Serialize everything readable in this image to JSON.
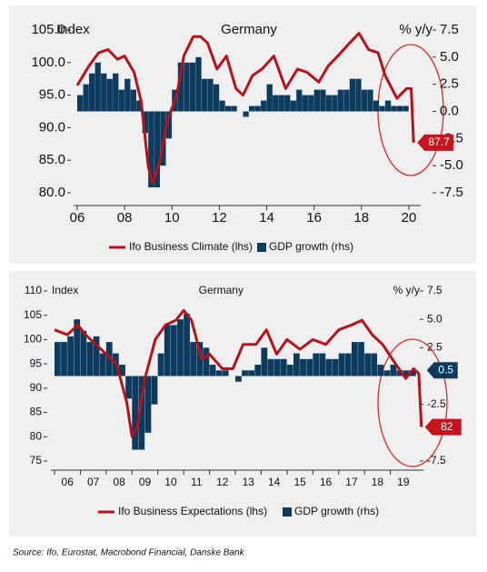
{
  "chart_data": [
    {
      "type": "combo",
      "title": "Germany",
      "y_label": "Index",
      "y2_label": "% y/y",
      "xlim": [
        2006,
        2020.5
      ],
      "xticks": [
        {
          "value": 2006,
          "label": "06"
        },
        {
          "value": 2008,
          "label": "08"
        },
        {
          "value": 2010,
          "label": "10"
        },
        {
          "value": 2012,
          "label": "12"
        },
        {
          "value": 2014,
          "label": "14"
        },
        {
          "value": 2016,
          "label": "16"
        },
        {
          "value": 2018,
          "label": "18"
        },
        {
          "value": 2020,
          "label": "20"
        }
      ],
      "ylim": [
        80,
        105
      ],
      "yticks": [
        {
          "value": 80,
          "label": "80.0"
        },
        {
          "value": 85,
          "label": "85.0"
        },
        {
          "value": 90,
          "label": "90.0"
        },
        {
          "value": 95,
          "label": "95.0"
        },
        {
          "value": 100,
          "label": "100.0"
        },
        {
          "value": 105,
          "label": "105.0"
        }
      ],
      "y2lim": [
        -7.5,
        7.5
      ],
      "y2ticks": [
        -7.5,
        {
          "value": -5,
          "label": "-5.0"
        },
        -2.5,
        {
          "value": 0,
          "label": "0.0"
        },
        2.5,
        {
          "value": 5,
          "label": "5.0"
        },
        7.5
      ],
      "series": [
        {
          "name": "Ifo Business Climate (lhs)",
          "kind": "line",
          "color": "#b5121b",
          "x": [
            2006.0,
            2006.5,
            2006.9,
            2007.3,
            2007.7,
            2008.0,
            2008.4,
            2008.7,
            2009.0,
            2009.2,
            2009.5,
            2009.8,
            2010.2,
            2010.5,
            2010.9,
            2011.2,
            2011.5,
            2011.9,
            2012.3,
            2012.7,
            2013.0,
            2013.4,
            2013.8,
            2014.3,
            2014.8,
            2015.3,
            2015.7,
            2016.2,
            2016.6,
            2017.0,
            2017.5,
            2017.9,
            2018.3,
            2018.7,
            2019.0,
            2019.5,
            2019.9,
            2020.1,
            2020.2
          ],
          "values": [
            96.5,
            99.5,
            101.5,
            102,
            100.5,
            101,
            98.5,
            94,
            84,
            81.5,
            85,
            91,
            95,
            101,
            104,
            104,
            103,
            99,
            101,
            96,
            95,
            98,
            99,
            101,
            96,
            99,
            98.5,
            97,
            99.5,
            101,
            103,
            104.5,
            102,
            101.5,
            98,
            94.5,
            96,
            96,
            87.7
          ]
        },
        {
          "name": "GDP growth (rhs)",
          "kind": "bar",
          "axis": "y2",
          "color": "#0d3b5e",
          "x": [
            2006.0,
            2006.25,
            2006.5,
            2006.75,
            2007.0,
            2007.25,
            2007.5,
            2007.75,
            2008.0,
            2008.25,
            2008.5,
            2008.75,
            2009.0,
            2009.25,
            2009.5,
            2009.75,
            2010.0,
            2010.25,
            2010.5,
            2010.75,
            2011.0,
            2011.25,
            2011.5,
            2011.75,
            2012.0,
            2012.25,
            2012.5,
            2012.75,
            2013.0,
            2013.25,
            2013.5,
            2013.75,
            2014.0,
            2014.25,
            2014.5,
            2014.75,
            2015.0,
            2015.25,
            2015.5,
            2015.75,
            2016.0,
            2016.25,
            2016.5,
            2016.75,
            2017.0,
            2017.25,
            2017.5,
            2017.75,
            2018.0,
            2018.25,
            2018.5,
            2018.75,
            2019.0,
            2019.25,
            2019.5,
            2019.75
          ],
          "values": [
            1.5,
            2.5,
            3.5,
            4.5,
            3.5,
            3,
            3.5,
            2,
            3,
            2,
            1,
            -2,
            -7,
            -7,
            -5,
            -2.5,
            2,
            4.5,
            4.5,
            4.5,
            5,
            3,
            3,
            2.5,
            1,
            0.5,
            0.5,
            0,
            -0.5,
            0.5,
            0.5,
            1,
            2.5,
            1.5,
            1.5,
            1.5,
            1,
            2,
            1.5,
            1.5,
            2,
            2,
            1.5,
            1.5,
            2,
            2,
            3,
            3,
            2,
            2,
            1,
            0.5,
            1,
            0.5,
            0.5,
            0.5
          ]
        }
      ]
    },
    {
      "type": "combo",
      "title": "Germany",
      "y_label": "Index",
      "y2_label": "% y/y",
      "xlim": [
        2006,
        2020.3
      ],
      "categories": [
        "06",
        "07",
        "08",
        "09",
        "10",
        "11",
        "12",
        "13",
        "14",
        "15",
        "16",
        "17",
        "18",
        "19"
      ],
      "ylim": [
        75,
        110
      ],
      "yticks": [
        75,
        80,
        85,
        90,
        95,
        100,
        105,
        110
      ],
      "y2lim": [
        -7.5,
        7.5
      ],
      "y2ticks": [
        -7.5,
        -2.5,
        2.5,
        {
          "value": 5,
          "label": "5.0"
        },
        7.5
      ],
      "series": [
        {
          "name": "Ifo Business Expectations (lhs)",
          "kind": "line",
          "color": "#b5121b",
          "x": [
            2006.0,
            2006.5,
            2006.9,
            2007.2,
            2007.6,
            2008.0,
            2008.4,
            2008.8,
            2009.0,
            2009.2,
            2009.5,
            2009.9,
            2010.3,
            2010.7,
            2011.0,
            2011.3,
            2011.7,
            2012.0,
            2012.5,
            2012.9,
            2013.3,
            2013.8,
            2014.2,
            2014.6,
            2015.0,
            2015.5,
            2016.0,
            2016.5,
            2017.0,
            2017.5,
            2017.9,
            2018.3,
            2018.7,
            2019.2,
            2019.6,
            2019.9,
            2020.1,
            2020.2
          ],
          "values": [
            102,
            101,
            103,
            101,
            99,
            97,
            95,
            87,
            80,
            82,
            92,
            100,
            103,
            104,
            106,
            104,
            96,
            97,
            94,
            94,
            99,
            99,
            102,
            97,
            100,
            98,
            100,
            99,
            102,
            103,
            104,
            101,
            99,
            95,
            92,
            94,
            93,
            82
          ]
        },
        {
          "name": "GDP growth (rhs)",
          "kind": "bar",
          "axis": "y2",
          "color": "#0d3b5e",
          "x": [
            2006.0,
            2006.25,
            2006.5,
            2006.75,
            2007.0,
            2007.25,
            2007.5,
            2007.75,
            2008.0,
            2008.25,
            2008.5,
            2008.75,
            2009.0,
            2009.25,
            2009.5,
            2009.75,
            2010.0,
            2010.25,
            2010.5,
            2010.75,
            2011.0,
            2011.25,
            2011.5,
            2011.75,
            2012.0,
            2012.25,
            2012.5,
            2012.75,
            2013.0,
            2013.25,
            2013.5,
            2013.75,
            2014.0,
            2014.25,
            2014.5,
            2014.75,
            2015.0,
            2015.25,
            2015.5,
            2015.75,
            2016.0,
            2016.25,
            2016.5,
            2016.75,
            2017.0,
            2017.25,
            2017.5,
            2017.75,
            2018.0,
            2018.25,
            2018.5,
            2018.75,
            2019.0,
            2019.25,
            2019.5,
            2019.75
          ],
          "values": [
            3,
            3,
            3.5,
            5,
            4,
            3,
            3.5,
            2,
            3,
            2,
            1,
            -2,
            -6.5,
            -6.5,
            -5,
            -2.5,
            2,
            4.5,
            4.5,
            5,
            5.5,
            3,
            3,
            2.5,
            1,
            0.5,
            0.5,
            0,
            -0.5,
            0.5,
            0.5,
            1,
            2.5,
            1.5,
            1.5,
            1.5,
            1,
            2,
            1.5,
            1.5,
            2,
            2,
            1.5,
            1.5,
            2,
            2,
            3,
            3,
            2,
            2,
            1,
            0.5,
            1,
            0.5,
            0.5,
            0.5
          ]
        }
      ]
    }
  ],
  "source": "Source: Ifo, Eurostat, Macrobond Financial, Danske Bank"
}
